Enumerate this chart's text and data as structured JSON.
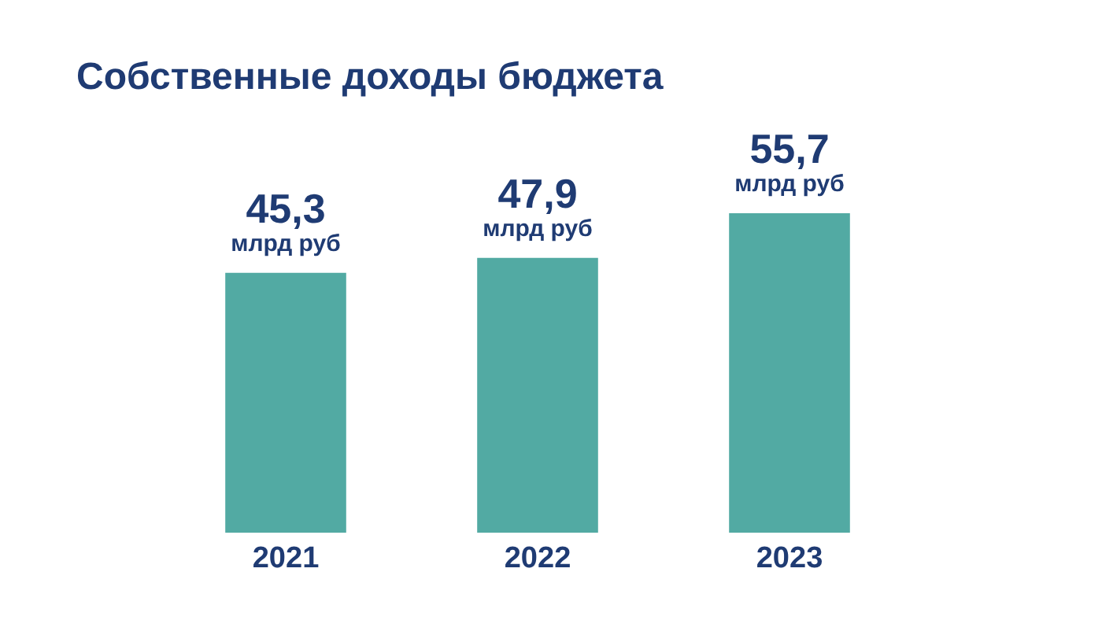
{
  "chart_data": {
    "type": "bar",
    "title": "Собственные доходы бюджета",
    "categories": [
      "2021",
      "2022",
      "2023"
    ],
    "values": [
      45.3,
      47.9,
      55.7
    ],
    "color": "#52aaa3",
    "value_labels": [
      "45,3 млрд руб",
      "47,9 млрд руб",
      "55,7 млрд руб"
    ]
  }
}
